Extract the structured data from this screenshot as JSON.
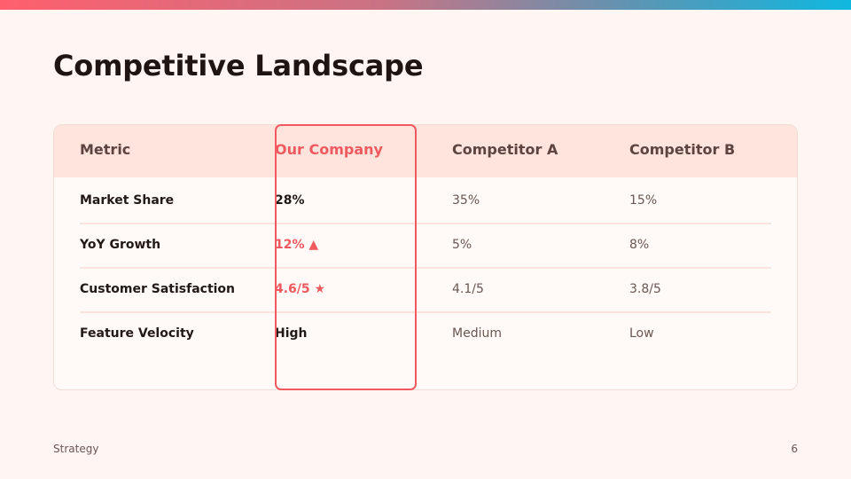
{
  "slide": {
    "title": "Competitive Landscape",
    "footer_label": "Strategy",
    "page_number": "6"
  },
  "table": {
    "headers": [
      "Metric",
      "Our Company",
      "Competitor A",
      "Competitor B"
    ],
    "rows": [
      {
        "metric": "Market Share",
        "ours": "28%",
        "a": "35%",
        "b": "15%"
      },
      {
        "metric": "YoY Growth",
        "ours": "12% ▲",
        "a": "5%",
        "b": "8%"
      },
      {
        "metric": "Customer Satisfaction",
        "ours": "4.6/5 ★",
        "a": "4.1/5",
        "b": "3.8/5"
      },
      {
        "metric": "Feature Velocity",
        "ours": "High",
        "a": "Medium",
        "b": "Low"
      }
    ]
  },
  "colors": {
    "accent": "#f05a5f",
    "header_bg": "#ffe4de",
    "page_bg": "#fff6f4"
  }
}
